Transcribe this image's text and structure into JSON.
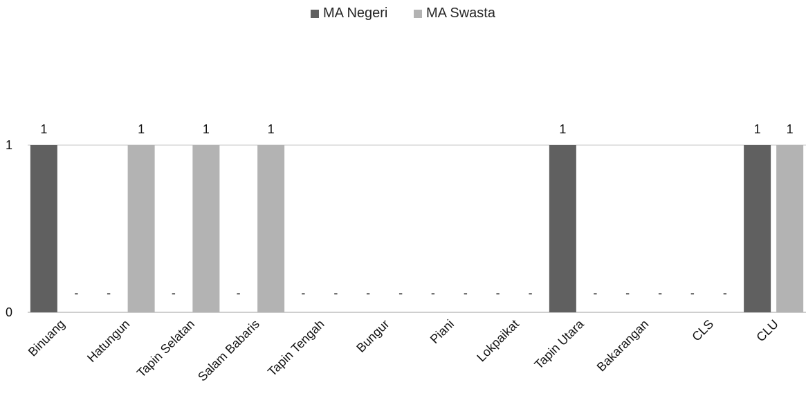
{
  "chart_data": {
    "type": "bar",
    "title": "",
    "xlabel": "",
    "ylabel": "",
    "categories": [
      "Binuang",
      "Hatungun",
      "Tapin Selatan",
      "Salam Babaris",
      "Tapin Tengah",
      "Bungur",
      "Piani",
      "Lokpaikat",
      "Tapin Utara",
      "Bakarangan",
      "CLS",
      "CLU"
    ],
    "series": [
      {
        "name": "MA Negeri",
        "color": "#606060",
        "values": [
          1,
          0,
          0,
          0,
          0,
          0,
          0,
          0,
          1,
          0,
          0,
          1
        ]
      },
      {
        "name": "MA Swasta",
        "color": "#b3b3b3",
        "values": [
          0,
          1,
          1,
          1,
          0,
          0,
          0,
          0,
          0,
          0,
          0,
          1
        ]
      }
    ],
    "ylim": [
      0,
      1
    ],
    "yticks": [
      0,
      1
    ],
    "zero_label": "-",
    "grid": true,
    "legend_position": "top-center"
  }
}
